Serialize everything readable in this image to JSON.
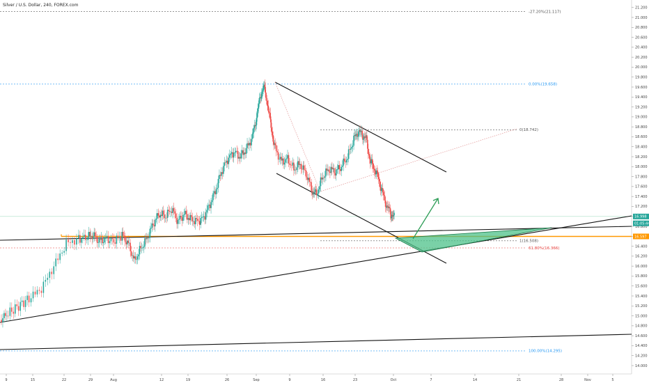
{
  "chart_data": {
    "type": "candlestick",
    "title": "Silver / U.S. Dollar, 240, FOREX.com",
    "y_ticks": [
      "21.200",
      "21.000",
      "20.800",
      "20.600",
      "20.400",
      "20.200",
      "20.000",
      "19.800",
      "19.600",
      "19.400",
      "19.200",
      "19.000",
      "18.800",
      "18.600",
      "18.400",
      "18.200",
      "18.000",
      "17.800",
      "17.600",
      "17.400",
      "17.200",
      "17.000",
      "16.800",
      "16.600",
      "16.400",
      "16.200",
      "16.000",
      "15.800",
      "15.600",
      "15.400",
      "15.200",
      "15.000",
      "14.800",
      "14.600",
      "14.400",
      "14.200",
      "14.000"
    ],
    "x_ticks": [
      "9",
      "15",
      "22",
      "29",
      "Aug",
      "12",
      "19",
      "26",
      "Sep",
      "9",
      "16",
      "23",
      "Oct",
      "7",
      "14",
      "21",
      "28",
      "Nov",
      "5"
    ],
    "ylim": [
      13.93,
      21.28
    ],
    "levels": [
      {
        "label": "-27.20%(21.117)",
        "value": 21.117,
        "color": "#555555"
      },
      {
        "label": "0.00%(19.658)",
        "value": 19.658,
        "color": "#2196f3"
      },
      {
        "label": "0(18.742)",
        "value": 18.742,
        "color": "#555555"
      },
      {
        "label": "1(16.508)",
        "value": 16.508,
        "color": "#555555"
      },
      {
        "label": "61.80%(16.366)",
        "value": 16.366,
        "color": "#e53935"
      },
      {
        "label": "100.00%(14.295)",
        "value": 14.295,
        "color": "#2196f3"
      }
    ],
    "price_tags": [
      {
        "label": "16.998",
        "value": 16.998,
        "color": "#26a69a"
      },
      {
        "label": "01:05:44",
        "value": 16.86,
        "color": "#26a69a"
      },
      {
        "label": "16.597",
        "value": 16.597,
        "color": "#ff9800"
      }
    ],
    "key_level": 16.597,
    "price_path": [
      [
        15.0,
        14.92
      ],
      [
        19,
        15.05
      ],
      [
        24,
        15.2
      ],
      [
        29,
        15.35
      ],
      [
        35,
        15.55
      ],
      [
        41,
        16.0
      ],
      [
        47,
        16.45
      ],
      [
        53,
        16.55
      ],
      [
        57,
        16.58
      ],
      [
        60,
        16.62
      ],
      [
        63,
        16.5
      ],
      [
        66,
        16.55
      ],
      [
        70,
        16.5
      ],
      [
        74,
        16.62
      ],
      [
        77,
        16.45
      ],
      [
        80,
        16.1
      ],
      [
        83,
        16.35
      ],
      [
        86,
        16.55
      ],
      [
        89,
        16.85
      ],
      [
        92,
        17.05
      ],
      [
        95,
        17.0
      ],
      [
        98,
        17.15
      ],
      [
        101,
        16.9
      ],
      [
        104,
        17.05
      ],
      [
        107,
        16.95
      ],
      [
        110,
        16.9
      ],
      [
        113,
        16.95
      ],
      [
        116,
        17.2
      ],
      [
        119,
        17.5
      ],
      [
        122,
        17.9
      ],
      [
        125,
        18.15
      ],
      [
        128,
        18.3
      ],
      [
        131,
        18.2
      ],
      [
        134,
        18.35
      ],
      [
        137,
        18.6
      ],
      [
        139,
        19.0
      ],
      [
        141,
        19.45
      ],
      [
        142.5,
        19.6
      ],
      [
        144,
        19.35
      ],
      [
        146,
        18.8
      ],
      [
        148,
        18.35
      ],
      [
        151,
        18.1
      ],
      [
        154,
        18.15
      ],
      [
        157,
        17.95
      ],
      [
        160,
        18.05
      ],
      [
        163,
        17.85
      ],
      [
        166,
        17.5
      ],
      [
        168,
        17.45
      ],
      [
        171,
        17.8
      ],
      [
        174,
        17.95
      ],
      [
        177,
        17.9
      ],
      [
        180,
        18.0
      ],
      [
        183,
        18.2
      ],
      [
        186,
        18.55
      ],
      [
        188,
        18.7
      ],
      [
        190,
        18.65
      ],
      [
        192,
        18.55
      ],
      [
        194,
        18.1
      ],
      [
        196,
        17.95
      ],
      [
        198,
        17.75
      ],
      [
        200,
        17.45
      ],
      [
        202,
        17.2
      ],
      [
        204,
        17.05
      ],
      [
        205.5,
        17.0
      ]
    ]
  }
}
